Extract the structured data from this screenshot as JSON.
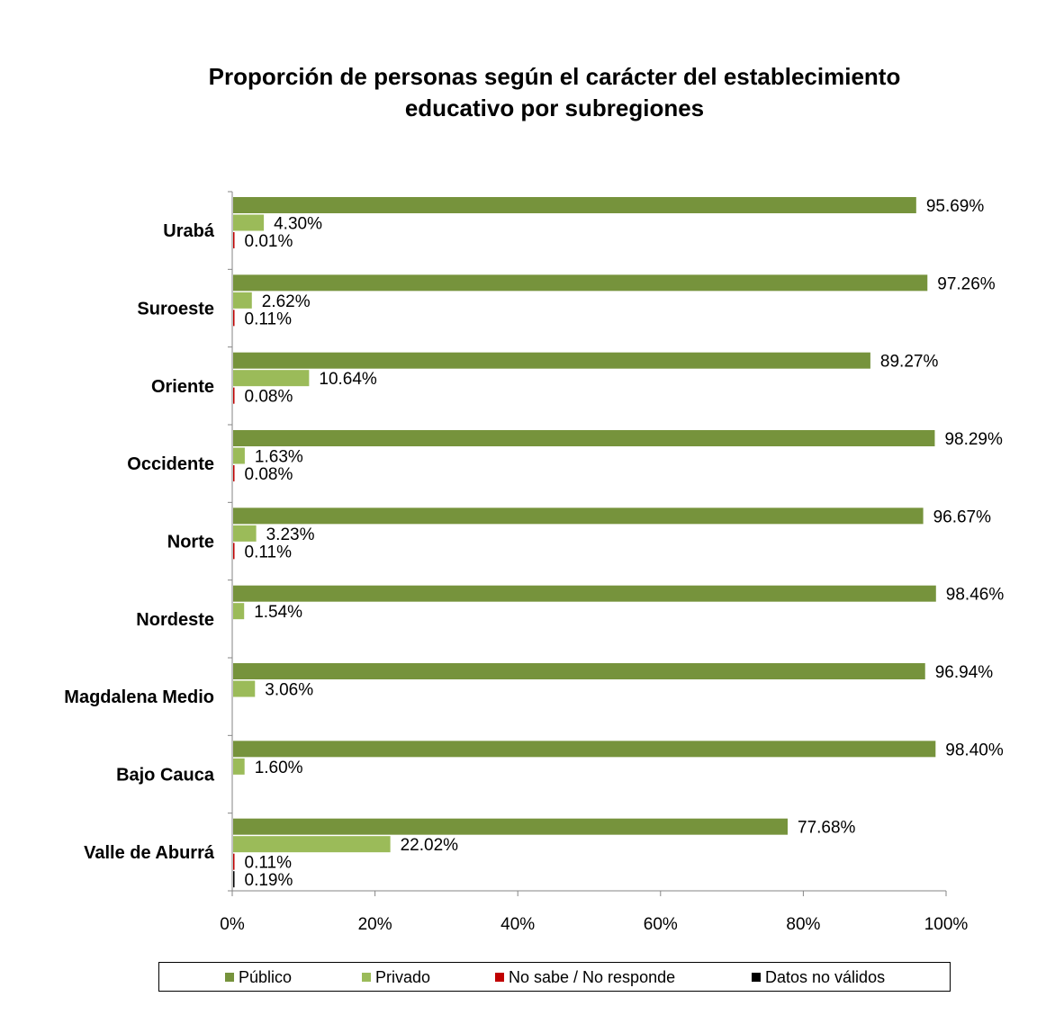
{
  "chart_data": {
    "type": "bar",
    "orientation": "horizontal",
    "title_lines": [
      "Proporción de personas según el carácter del establecimiento",
      "educativo por subregiones"
    ],
    "categories": [
      "Urabá",
      "Suroeste",
      "Oriente",
      "Occidente",
      "Norte",
      "Nordeste",
      "Magdalena Medio",
      "Bajo Cauca",
      "Valle de Aburrá"
    ],
    "series": [
      {
        "name": "Público",
        "color": "#76933C",
        "values": [
          95.69,
          97.26,
          89.27,
          98.29,
          96.67,
          98.46,
          96.94,
          98.4,
          77.68
        ],
        "labels": [
          "95.69%",
          "97.26%",
          "89.27%",
          "98.29%",
          "96.67%",
          "98.46%",
          "96.94%",
          "98.40%",
          "77.68%"
        ]
      },
      {
        "name": "Privado",
        "color": "#9BBB59",
        "values": [
          4.3,
          2.62,
          10.64,
          1.63,
          3.23,
          1.54,
          3.06,
          1.6,
          22.02
        ],
        "labels": [
          "4.30%",
          "2.62%",
          "10.64%",
          "1.63%",
          "3.23%",
          "1.54%",
          "3.06%",
          "1.60%",
          "22.02%"
        ]
      },
      {
        "name": "No sabe / No responde",
        "color": "#C00000",
        "values": [
          0.01,
          0.11,
          0.08,
          0.08,
          0.11,
          null,
          null,
          null,
          0.11
        ],
        "labels": [
          "0.01%",
          "0.11%",
          "0.08%",
          "0.08%",
          "0.11%",
          null,
          null,
          null,
          "0.11%"
        ]
      },
      {
        "name": "Datos no válidos",
        "color": "#000000",
        "values": [
          null,
          null,
          null,
          null,
          null,
          null,
          null,
          null,
          0.19
        ],
        "labels": [
          null,
          null,
          null,
          null,
          null,
          null,
          null,
          null,
          "0.19%"
        ]
      }
    ],
    "x_ticks": [
      "0%",
      "20%",
      "40%",
      "60%",
      "80%",
      "100%"
    ],
    "xlim": [
      0,
      100
    ],
    "grid": false,
    "legend_position": "bottom"
  }
}
